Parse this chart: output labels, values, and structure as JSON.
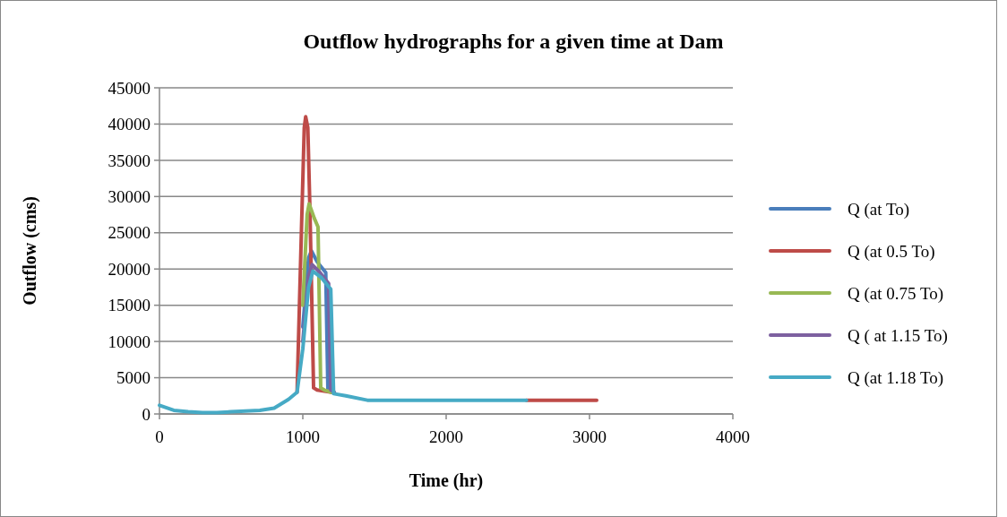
{
  "chart_data": {
    "type": "line",
    "title": "Outflow hydrographs for a given time at Dam",
    "xlabel": "Time (hr)",
    "ylabel": "Outflow (cms)",
    "xlim": [
      0,
      4000
    ],
    "xticks": [
      0,
      1000,
      2000,
      3000,
      4000
    ],
    "ylim": [
      0,
      45000
    ],
    "yticks": [
      0,
      5000,
      10000,
      15000,
      20000,
      25000,
      30000,
      35000,
      40000,
      45000
    ],
    "grid": "y",
    "legend": "right",
    "marker": "none",
    "line_style": "solid",
    "series": [
      {
        "name": "Q (at To)",
        "color": "#4a7ebb",
        "x": [
          1000,
          1040,
          1060,
          1100,
          1140,
          1160,
          1175,
          1200
        ],
        "values": [
          12000,
          21500,
          22500,
          21000,
          20000,
          19500,
          3500,
          3000
        ]
      },
      {
        "name": "Q (at 0.5 To)",
        "color": "#be4b48",
        "x": [
          960,
          990,
          1010,
          1020,
          1035,
          1050,
          1075,
          1100,
          1200,
          2300,
          2560,
          3050
        ],
        "values": [
          3000,
          25000,
          39500,
          41000,
          39500,
          28000,
          3600,
          3300,
          3000,
          null,
          1900,
          1900
        ]
      },
      {
        "name": "Q (at 0.75 To)",
        "color": "#98b954",
        "x": [
          1000,
          1030,
          1044,
          1080,
          1106,
          1125,
          1150,
          1200
        ],
        "values": [
          15000,
          27500,
          29000,
          27000,
          25800,
          3600,
          3300,
          3000
        ]
      },
      {
        "name": "Q ( at 1.15 To)",
        "color": "#7d60a0",
        "x": [
          1000,
          1040,
          1065,
          1120,
          1180,
          1195,
          1220
        ],
        "values": [
          10000,
          19000,
          20600,
          19500,
          18000,
          3300,
          3000
        ]
      },
      {
        "name": "Q (at 1.18 To)",
        "color": "#46aac5",
        "x": [
          0,
          100,
          200,
          300,
          400,
          500,
          600,
          700,
          800,
          900,
          960,
          1000,
          1040,
          1070,
          1130,
          1195,
          1215,
          1300,
          1450,
          2000,
          2560
        ],
        "values": [
          1200,
          500,
          300,
          200,
          200,
          300,
          400,
          500,
          800,
          2000,
          3000,
          9000,
          17500,
          19700,
          18800,
          17200,
          2800,
          2500,
          1900,
          1900,
          1900
        ]
      }
    ]
  }
}
